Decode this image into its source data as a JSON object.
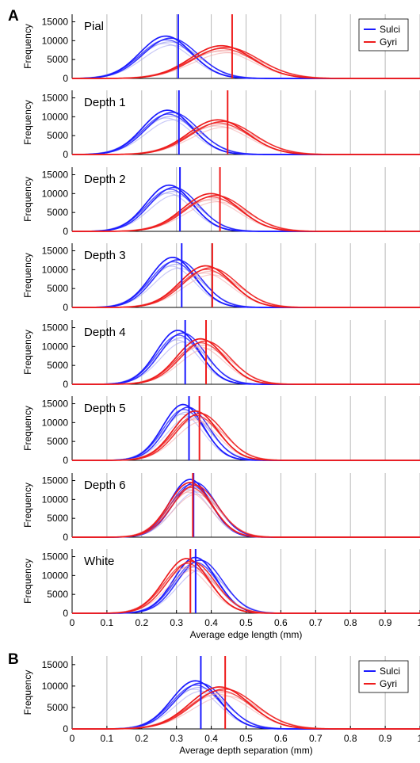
{
  "figure": {
    "panel_a_letter": "A",
    "panel_b_letter": "B"
  },
  "chart_data": [
    {
      "type": "line",
      "panel": "A",
      "xlabel": "Average edge length (mm)",
      "ylabel": "Frequency",
      "xlim": [
        0,
        1
      ],
      "ylim": [
        0,
        17000
      ],
      "xticks": [
        "0",
        "0.1",
        "0.2",
        "0.3",
        "0.4",
        "0.5",
        "0.6",
        "0.7",
        "0.8",
        "0.9",
        "1"
      ],
      "yticks": [
        0,
        5000,
        10000,
        15000
      ],
      "grid": "vertical",
      "legend": {
        "position": "top-right",
        "entries": [
          {
            "label": "Sulci",
            "color": "#1a1aff"
          },
          {
            "label": "Gyri",
            "color": "#ee1c1c"
          }
        ]
      },
      "subplots": [
        {
          "title": "Pial",
          "sulci_peak_x": 0.275,
          "sulci_peak_y": 11000,
          "sulci_sd": 0.078,
          "sulci_mean": 0.305,
          "gyri_peak_x": 0.435,
          "gyri_peak_y": 8500,
          "gyri_sd": 0.095,
          "gyri_mean": 0.46
        },
        {
          "title": "Depth 1",
          "sulci_peak_x": 0.28,
          "sulci_peak_y": 11500,
          "sulci_sd": 0.075,
          "sulci_mean": 0.307,
          "gyri_peak_x": 0.425,
          "gyri_peak_y": 9000,
          "gyri_sd": 0.09,
          "gyri_mean": 0.447
        },
        {
          "title": "Depth 2",
          "sulci_peak_x": 0.285,
          "sulci_peak_y": 12000,
          "sulci_sd": 0.07,
          "sulci_mean": 0.31,
          "gyri_peak_x": 0.405,
          "gyri_peak_y": 9800,
          "gyri_sd": 0.085,
          "gyri_mean": 0.425
        },
        {
          "title": "Depth 3",
          "sulci_peak_x": 0.295,
          "sulci_peak_y": 13000,
          "sulci_sd": 0.068,
          "sulci_mean": 0.315,
          "gyri_peak_x": 0.39,
          "gyri_peak_y": 10800,
          "gyri_sd": 0.078,
          "gyri_mean": 0.403
        },
        {
          "title": "Depth 4",
          "sulci_peak_x": 0.31,
          "sulci_peak_y": 14000,
          "sulci_sd": 0.065,
          "sulci_mean": 0.325,
          "gyri_peak_x": 0.375,
          "gyri_peak_y": 11800,
          "gyri_sd": 0.072,
          "gyri_mean": 0.385
        },
        {
          "title": "Depth 5",
          "sulci_peak_x": 0.325,
          "sulci_peak_y": 14500,
          "sulci_sd": 0.062,
          "sulci_mean": 0.336,
          "gyri_peak_x": 0.36,
          "gyri_peak_y": 12800,
          "gyri_sd": 0.068,
          "gyri_mean": 0.366
        },
        {
          "title": "Depth 6",
          "sulci_peak_x": 0.345,
          "sulci_peak_y": 15000,
          "sulci_sd": 0.062,
          "sulci_mean": 0.349,
          "gyri_peak_x": 0.345,
          "gyri_peak_y": 14200,
          "gyri_sd": 0.065,
          "gyri_mean": 0.347
        },
        {
          "title": "White",
          "sulci_peak_x": 0.36,
          "sulci_peak_y": 14500,
          "sulci_sd": 0.065,
          "sulci_mean": 0.355,
          "gyri_peak_x": 0.335,
          "gyri_peak_y": 14200,
          "gyri_sd": 0.068,
          "gyri_mean": 0.34
        }
      ]
    },
    {
      "type": "line",
      "panel": "B",
      "xlabel": "Average depth separation (mm)",
      "ylabel": "Frequency",
      "xlim": [
        0,
        1
      ],
      "ylim": [
        0,
        17000
      ],
      "xticks": [
        "0",
        "0.1",
        "0.2",
        "0.3",
        "0.4",
        "0.5",
        "0.6",
        "0.7",
        "0.8",
        "0.9",
        "1"
      ],
      "yticks": [
        0,
        5000,
        10000,
        15000
      ],
      "grid": "vertical",
      "legend": {
        "position": "top-right",
        "entries": [
          {
            "label": "Sulci",
            "color": "#1a1aff"
          },
          {
            "label": "Gyri",
            "color": "#ee1c1c"
          }
        ]
      },
      "subplots": [
        {
          "title": "",
          "sulci_peak_x": 0.36,
          "sulci_peak_y": 11000,
          "sulci_sd": 0.072,
          "sulci_mean": 0.37,
          "gyri_peak_x": 0.43,
          "gyri_peak_y": 9600,
          "gyri_sd": 0.09,
          "gyri_mean": 0.44
        }
      ]
    }
  ]
}
